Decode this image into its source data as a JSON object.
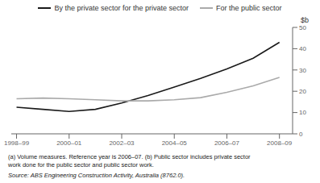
{
  "chart_data": {
    "type": "line",
    "x": [
      0,
      1,
      2,
      3,
      4,
      5,
      6,
      7,
      8,
      9,
      10
    ],
    "xlim": [
      -0.2,
      10.5
    ],
    "xticks": [
      {
        "value": 0,
        "label": "1998–99"
      },
      {
        "value": 2,
        "label": "2000–01"
      },
      {
        "value": 4,
        "label": "2002–03"
      },
      {
        "value": 6,
        "label": "2004–05"
      },
      {
        "value": 8,
        "label": "2006–07"
      },
      {
        "value": 10,
        "label": "2008–09"
      }
    ],
    "ylim": [
      0,
      50
    ],
    "yticks": [
      0,
      10,
      20,
      30,
      40,
      50
    ],
    "y_label": "$b",
    "series": [
      {
        "name": "By the private sector for the private sector",
        "color": "#1a1a1a",
        "values": [
          12.5,
          11.5,
          10.5,
          11.5,
          14.5,
          18.0,
          22.0,
          26.0,
          30.5,
          35.5,
          43.0
        ]
      },
      {
        "name": "For the public sector",
        "color": "#aaaaaa",
        "values": [
          16.5,
          16.8,
          16.5,
          16.0,
          15.5,
          15.5,
          16.0,
          17.0,
          19.5,
          22.5,
          26.5
        ]
      }
    ],
    "annotations": [
      "(a) Volume measures. Reference year is 2006–07. (b) Public sector includes private sector",
      "work done for the public sector and public sector work.",
      "Source: ABS Engineering Construction Activity, Australia (8762.0)."
    ],
    "legend": "top",
    "grid": false
  }
}
